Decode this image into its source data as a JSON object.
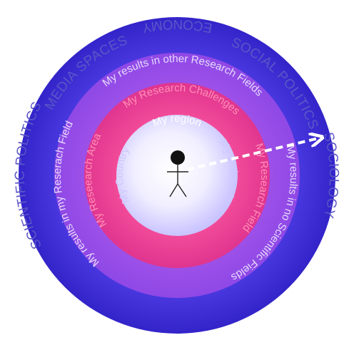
{
  "outer_labels": {
    "top": "MEDIA SPACES",
    "top_right": "SOCIAL POLITICS",
    "right": "SOCIOLOGY",
    "bottom": "ECONOMY",
    "left": "SCIENTIFIC POLITICS"
  },
  "ring_labels": {
    "other_fields": "My results in other Research Fields",
    "no_scientific": "My results in no Scientific Fields",
    "my_field": "My results in my Reserach Field",
    "challenges": "My Research Challenges",
    "research_area": "My Reseearch Area",
    "research_field": "My Research Field",
    "region": "My region",
    "university": "My University",
    "country": "My Country"
  },
  "colors": {
    "outer_ring": "#3b2fd9",
    "middle_ring": "#9b4fe8",
    "inner_ring": "#f0428c",
    "core": "#ffffff",
    "label": "#5a56c8",
    "arrow": "#ffffff"
  }
}
